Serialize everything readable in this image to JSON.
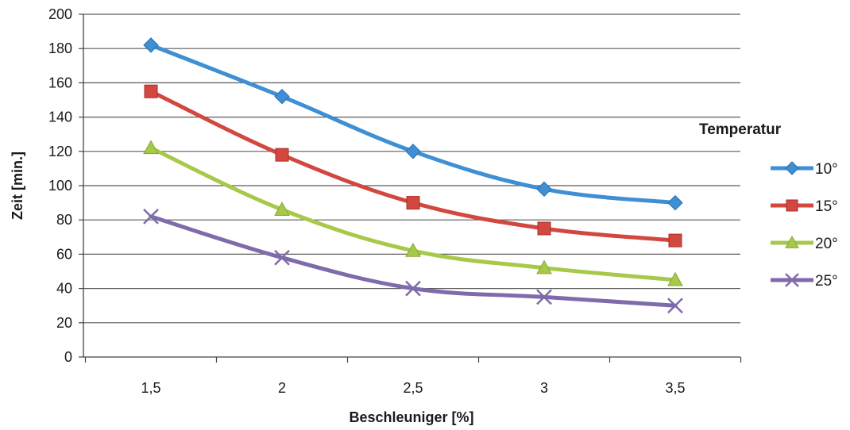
{
  "chart_data": {
    "type": "line",
    "categories": [
      "1,5",
      "2",
      "2,5",
      "3",
      "3,5"
    ],
    "series": [
      {
        "name": "10°",
        "values": [
          182,
          152,
          120,
          98,
          90
        ],
        "color": "#3e8fd3",
        "marker": "diamond"
      },
      {
        "name": "15°",
        "values": [
          155,
          118,
          90,
          75,
          68
        ],
        "color": "#d2473f",
        "marker": "square"
      },
      {
        "name": "20°",
        "values": [
          122,
          86,
          62,
          52,
          45
        ],
        "color": "#a7c94a",
        "marker": "triangle"
      },
      {
        "name": "25°",
        "values": [
          82,
          58,
          40,
          35,
          30
        ],
        "color": "#7f6bab",
        "marker": "x"
      }
    ],
    "xlabel": "Beschleuniger [%]",
    "ylabel": "Zeit [min.]",
    "ylim": [
      0,
      200
    ],
    "yticks": [
      "0",
      "20",
      "40",
      "60",
      "80",
      "100",
      "120",
      "140",
      "160",
      "180",
      "200"
    ],
    "legend_title": "Temperatur",
    "legend_position": "right",
    "grid": "horizontal"
  }
}
